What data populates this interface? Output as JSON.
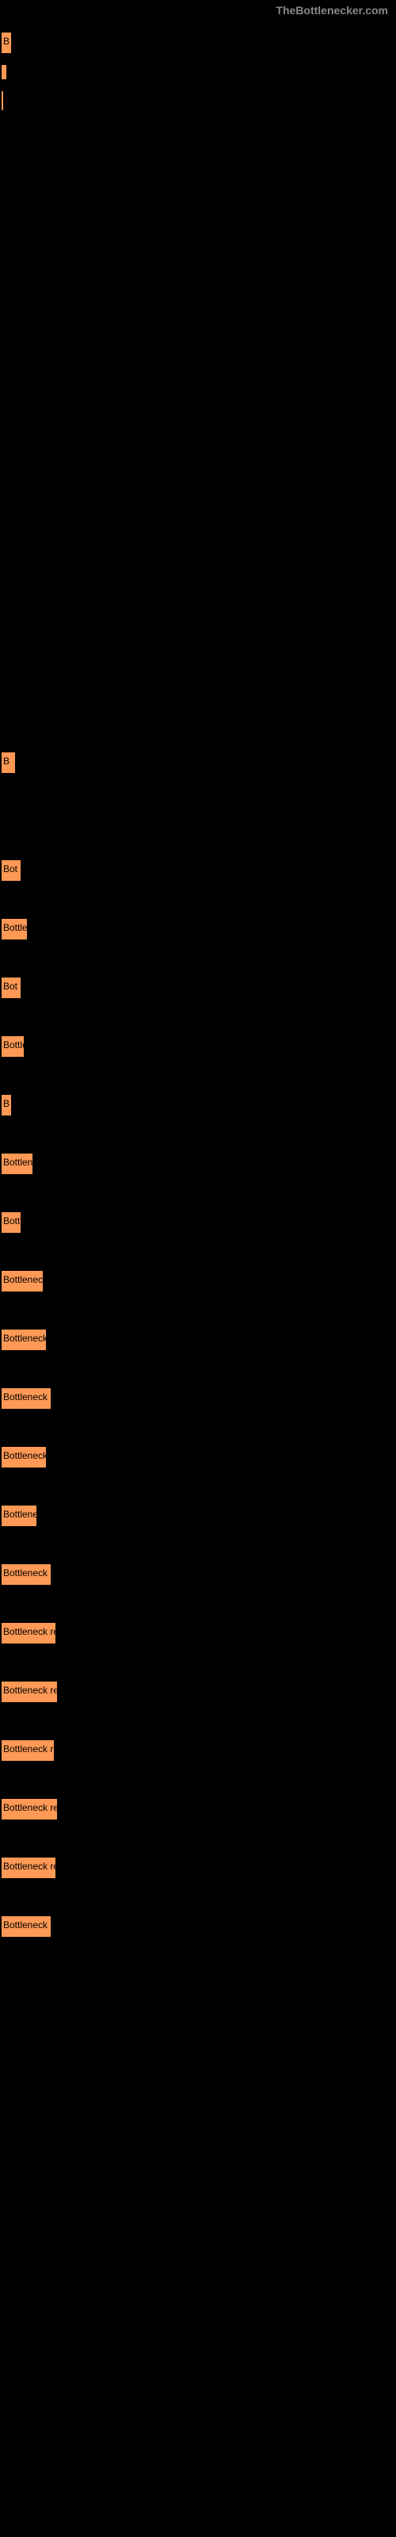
{
  "watermark": "TheBottlenecker.com",
  "bars": [
    {
      "width": 8,
      "height": 18,
      "label": "B",
      "labelShown": true
    },
    {
      "width": 6,
      "height": 18,
      "label": "",
      "labelShown": false
    },
    {
      "width": 2,
      "height": 24,
      "label": "",
      "labelShown": false
    },
    {
      "width": 13,
      "height": 18,
      "label": "B",
      "labelShown": true
    },
    {
      "width": 20,
      "height": 18,
      "label": "Bot",
      "labelShown": true
    },
    {
      "width": 28,
      "height": 18,
      "label": "Bottlen",
      "labelShown": true
    },
    {
      "width": 20,
      "height": 18,
      "label": "Bot",
      "labelShown": true
    },
    {
      "width": 24,
      "height": 18,
      "label": "Bottle",
      "labelShown": true
    },
    {
      "width": 8,
      "height": 18,
      "label": "B",
      "labelShown": true
    },
    {
      "width": 35,
      "height": 18,
      "label": "Bottlene",
      "labelShown": true
    },
    {
      "width": 20,
      "height": 18,
      "label": "Bott",
      "labelShown": true
    },
    {
      "width": 48,
      "height": 18,
      "label": "Bottleneck r",
      "labelShown": true
    },
    {
      "width": 52,
      "height": 18,
      "label": "Bottleneck re",
      "labelShown": true
    },
    {
      "width": 58,
      "height": 18,
      "label": "Bottleneck resu",
      "labelShown": true
    },
    {
      "width": 52,
      "height": 18,
      "label": "Bottleneck res",
      "labelShown": true
    },
    {
      "width": 40,
      "height": 18,
      "label": "Bottleneck",
      "labelShown": true
    },
    {
      "width": 58,
      "height": 18,
      "label": "Bottleneck resu",
      "labelShown": true
    },
    {
      "width": 64,
      "height": 18,
      "label": "Bottleneck result",
      "labelShown": true
    },
    {
      "width": 66,
      "height": 18,
      "label": "Bottleneck result",
      "labelShown": true
    },
    {
      "width": 62,
      "height": 18,
      "label": "Bottleneck result",
      "labelShown": true
    },
    {
      "width": 66,
      "height": 18,
      "label": "Bottleneck result",
      "labelShown": true
    },
    {
      "width": 64,
      "height": 18,
      "label": "Bottleneck result",
      "labelShown": true
    },
    {
      "width": 58,
      "height": 18,
      "label": "Bottleneck resu",
      "labelShown": true
    }
  ],
  "barColor": "#ff9955",
  "backgroundColor": "#000000",
  "sectionGap": 48
}
